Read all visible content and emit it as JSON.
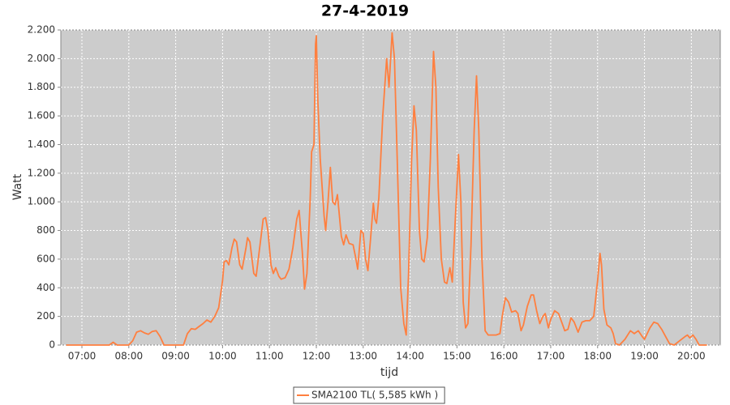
{
  "chart_data": {
    "type": "line",
    "title": "27-4-2019",
    "x_label": "tijd",
    "y_label": "Watt",
    "x": [
      "06:40",
      "06:50",
      "07:00",
      "07:10",
      "07:20",
      "07:30",
      "07:35",
      "07:40",
      "07:45",
      "08:00",
      "08:05",
      "08:10",
      "08:15",
      "08:20",
      "08:25",
      "08:30",
      "08:35",
      "08:40",
      "08:45",
      "09:00",
      "09:10",
      "09:15",
      "09:20",
      "09:25",
      "09:30",
      "09:35",
      "09:40",
      "09:45",
      "09:50",
      "09:55",
      "10:00",
      "10:02",
      "10:05",
      "10:08",
      "10:12",
      "10:15",
      "10:18",
      "10:22",
      "10:25",
      "10:30",
      "10:32",
      "10:35",
      "10:40",
      "10:43",
      "10:48",
      "10:52",
      "10:55",
      "10:58",
      "11:02",
      "11:05",
      "11:08",
      "11:12",
      "11:15",
      "11:20",
      "11:25",
      "11:30",
      "11:35",
      "11:38",
      "11:42",
      "11:45",
      "11:48",
      "11:52",
      "11:54",
      "11:57",
      "11:59",
      "12:00",
      "12:02",
      "12:05",
      "12:10",
      "12:12",
      "12:15",
      "12:18",
      "12:21",
      "12:24",
      "12:27",
      "12:32",
      "12:35",
      "12:38",
      "12:42",
      "12:47",
      "12:50",
      "12:53",
      "12:57",
      "13:00",
      "13:03",
      "13:06",
      "13:10",
      "13:13",
      "13:15",
      "13:17",
      "13:20",
      "13:25",
      "13:30",
      "13:33",
      "13:37",
      "13:40",
      "13:44",
      "13:48",
      "13:52",
      "13:55",
      "13:58",
      "14:02",
      "14:05",
      "14:08",
      "14:12",
      "14:15",
      "14:18",
      "14:22",
      "14:26",
      "14:30",
      "14:33",
      "14:36",
      "14:40",
      "14:44",
      "14:47",
      "14:51",
      "14:54",
      "14:58",
      "15:02",
      "15:05",
      "15:08",
      "15:11",
      "15:14",
      "15:18",
      "15:22",
      "15:25",
      "15:28",
      "15:32",
      "15:36",
      "15:40",
      "15:45",
      "15:50",
      "15:55",
      "15:58",
      "16:02",
      "16:06",
      "16:10",
      "16:15",
      "16:18",
      "16:22",
      "16:25",
      "16:30",
      "16:35",
      "16:38",
      "16:42",
      "16:46",
      "16:50",
      "16:53",
      "16:57",
      "17:00",
      "17:05",
      "17:10",
      "17:14",
      "17:18",
      "17:22",
      "17:26",
      "17:30",
      "17:35",
      "17:40",
      "17:45",
      "17:50",
      "17:55",
      "18:00",
      "18:03",
      "18:05",
      "18:08",
      "18:12",
      "18:17",
      "18:20",
      "18:23",
      "18:28",
      "18:35",
      "18:42",
      "18:47",
      "18:52",
      "18:57",
      "19:00",
      "19:07",
      "19:12",
      "19:17",
      "19:22",
      "19:27",
      "19:32",
      "19:38",
      "19:45",
      "19:52",
      "19:55",
      "19:58",
      "20:02",
      "20:06",
      "20:10",
      "20:20"
    ],
    "series": [
      {
        "name": "SMA2100 TL( 5,585 kWh )",
        "color": "#ff7f3f",
        "values": [
          0,
          0,
          0,
          0,
          0,
          0,
          0,
          20,
          0,
          0,
          30,
          90,
          100,
          85,
          75,
          95,
          100,
          60,
          0,
          0,
          0,
          80,
          115,
          110,
          130,
          150,
          175,
          160,
          200,
          260,
          450,
          580,
          590,
          560,
          680,
          740,
          720,
          560,
          530,
          680,
          750,
          720,
          500,
          480,
          700,
          880,
          890,
          800,
          560,
          500,
          540,
          480,
          460,
          470,
          530,
          680,
          880,
          940,
          650,
          390,
          500,
          1000,
          1350,
          1400,
          2100,
          2160,
          1700,
          1300,
          900,
          800,
          1000,
          1240,
          1000,
          980,
          1050,
          760,
          700,
          770,
          710,
          700,
          620,
          530,
          800,
          780,
          600,
          520,
          780,
          990,
          880,
          850,
          1030,
          1600,
          2000,
          1800,
          2180,
          2000,
          1200,
          400,
          150,
          70,
          500,
          1300,
          1670,
          1500,
          800,
          600,
          580,
          750,
          1300,
          2050,
          1800,
          1100,
          600,
          440,
          430,
          540,
          440,
          900,
          1330,
          1000,
          300,
          120,
          150,
          700,
          1500,
          1880,
          1500,
          600,
          100,
          70,
          70,
          70,
          80,
          200,
          330,
          300,
          230,
          240,
          220,
          100,
          140,
          270,
          350,
          350,
          240,
          150,
          200,
          220,
          120,
          180,
          240,
          220,
          160,
          100,
          110,
          190,
          160,
          90,
          160,
          170,
          170,
          200,
          450,
          640,
          560,
          250,
          140,
          120,
          80,
          10,
          0,
          40,
          100,
          80,
          100,
          60,
          40,
          120,
          160,
          150,
          110,
          60,
          10,
          0,
          30,
          60,
          70,
          50,
          70,
          40,
          0,
          0
        ]
      }
    ],
    "xlim": [
      "06:33",
      "20:37"
    ],
    "xticks": [
      "07:00",
      "08:00",
      "09:00",
      "10:00",
      "11:00",
      "12:00",
      "13:00",
      "14:00",
      "15:00",
      "16:00",
      "17:00",
      "18:00",
      "19:00",
      "20:00"
    ],
    "ylim": [
      0,
      2200
    ],
    "yticks": [
      0,
      200,
      400,
      600,
      800,
      {
        "value": 1000,
        "label": "1.000"
      },
      {
        "value": 1200,
        "label": "1.200"
      },
      {
        "value": 1400,
        "label": "1.400"
      },
      {
        "value": 1600,
        "label": "1.600"
      },
      {
        "value": 1800,
        "label": "1.800"
      },
      {
        "value": 2000,
        "label": "2.000"
      },
      {
        "value": 2200,
        "label": "2.200"
      }
    ],
    "grid": true,
    "legend": "bottom"
  }
}
